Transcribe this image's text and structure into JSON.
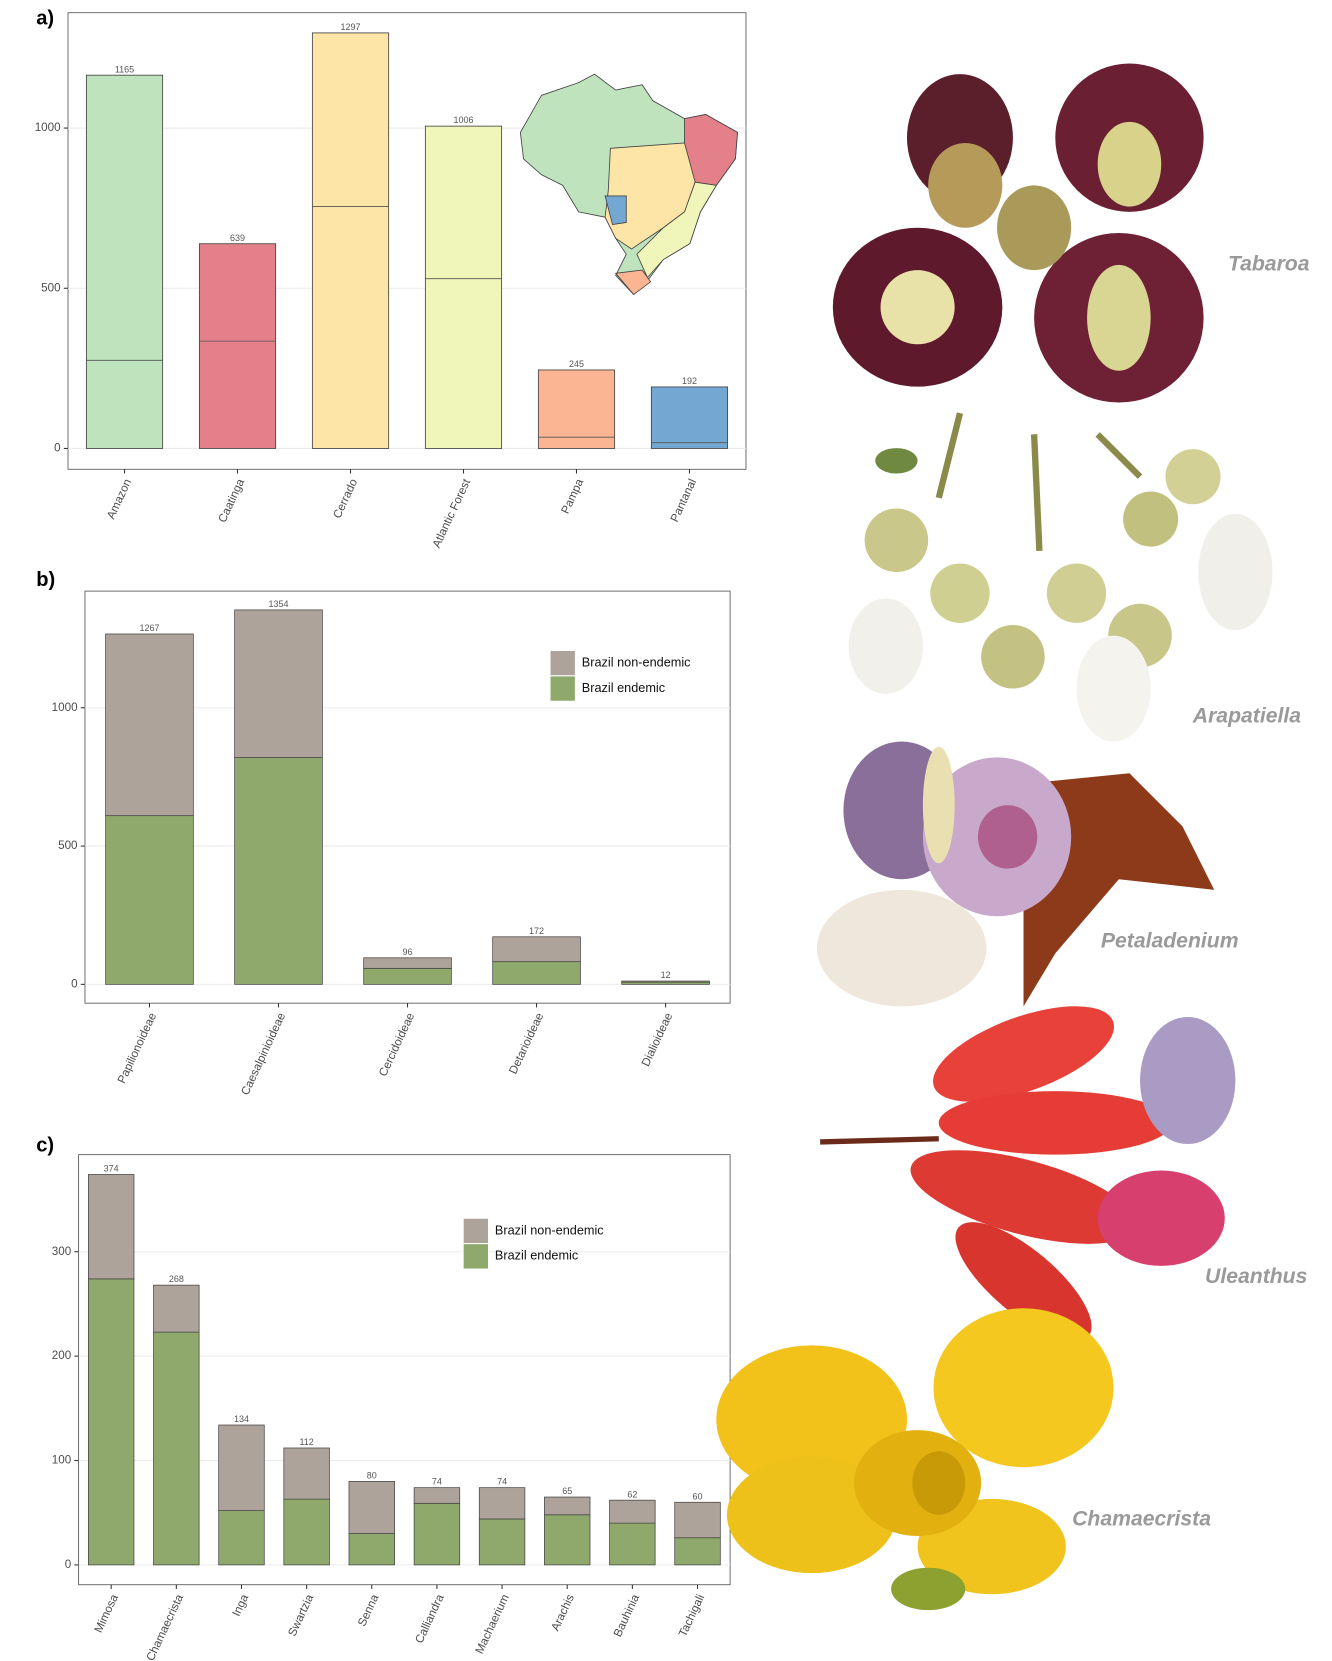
{
  "chart_data": [
    {
      "type": "bar",
      "panel_label": "a)",
      "categories": [
        "Amazon",
        "Caatinga",
        "Cerrado",
        "Atlantic Forest",
        "Pampa",
        "Pantanal"
      ],
      "values": [
        1165,
        639,
        1297,
        1006,
        245,
        192
      ],
      "inner_values": [
        275,
        335,
        755,
        530,
        35,
        18
      ],
      "colors": [
        "#bfe3bd",
        "#e3808a",
        "#fde4a7",
        "#f0f6b9",
        "#fcb593",
        "#74a8d3"
      ],
      "ylim": [
        -65,
        1360
      ],
      "yticks": [
        0,
        500,
        1000
      ],
      "grid": true
    },
    {
      "type": "stacked_bar",
      "panel_label": "b)",
      "categories": [
        "Papilionoideae",
        "Caesalpinioideae",
        "Cercidoideae",
        "Detarioideae",
        "Dialioideae"
      ],
      "totals": [
        1267,
        1354,
        96,
        172,
        12
      ],
      "series": [
        {
          "name": "Brazil non-endemic",
          "color": "#aea39a",
          "values": [
            657,
            534,
            38,
            90,
            4
          ]
        },
        {
          "name": "Brazil endemic",
          "color": "#8ea96b",
          "values": [
            610,
            820,
            58,
            82,
            8
          ]
        }
      ],
      "ylim": [
        -68,
        1422
      ],
      "yticks": [
        0,
        500,
        1000
      ],
      "grid": true
    },
    {
      "type": "stacked_bar",
      "panel_label": "c)",
      "categories": [
        "Mimosa",
        "Chamaecrista",
        "Inga",
        "Swartzia",
        "Senna",
        "Calliandra",
        "Machaerium",
        "Arachis",
        "Bauhinia",
        "Tachigali"
      ],
      "totals": [
        374,
        268,
        134,
        112,
        80,
        74,
        74,
        65,
        62,
        60
      ],
      "series": [
        {
          "name": "Brazil non-endemic",
          "color": "#aea39a",
          "values": [
            100,
            45,
            82,
            49,
            50,
            15,
            30,
            17,
            22,
            34
          ]
        },
        {
          "name": "Brazil endemic",
          "color": "#8ea96b",
          "values": [
            274,
            223,
            52,
            63,
            30,
            59,
            44,
            48,
            40,
            26
          ]
        }
      ],
      "ylim": [
        -19,
        393
      ],
      "yticks": [
        0,
        100,
        200,
        300
      ],
      "grid": true
    }
  ],
  "images": [
    {
      "label": "Tabaroa"
    },
    {
      "label": "Arapatiella"
    },
    {
      "label": "Petaladenium"
    },
    {
      "label": "Uleanthus"
    },
    {
      "label": "Chamaecrista"
    }
  ]
}
